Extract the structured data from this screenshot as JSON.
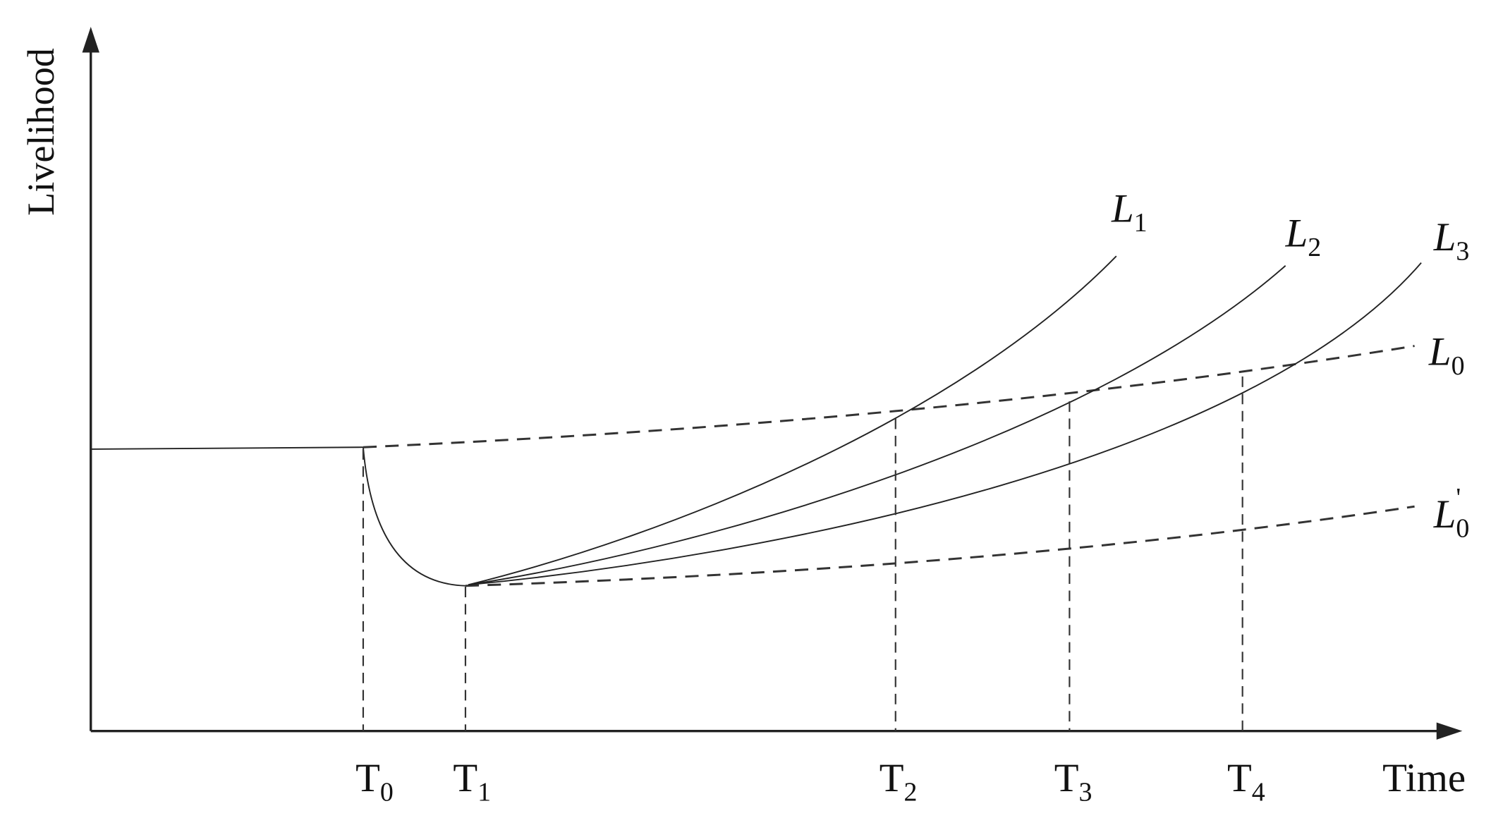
{
  "axes": {
    "y_label": "Livelihood",
    "x_label": "Time"
  },
  "time_points": [
    {
      "main": "T",
      "sub": "0"
    },
    {
      "main": "T",
      "sub": "1"
    },
    {
      "main": "T",
      "sub": "2"
    },
    {
      "main": "T",
      "sub": "3"
    },
    {
      "main": "T",
      "sub": "4"
    }
  ],
  "curves": [
    {
      "main": "L",
      "sub": "1"
    },
    {
      "main": "L",
      "sub": "2"
    },
    {
      "main": "L",
      "sub": "3"
    },
    {
      "main": "L",
      "sub": "0"
    },
    {
      "main": "L",
      "sub": "0",
      "sup": "'"
    }
  ]
}
